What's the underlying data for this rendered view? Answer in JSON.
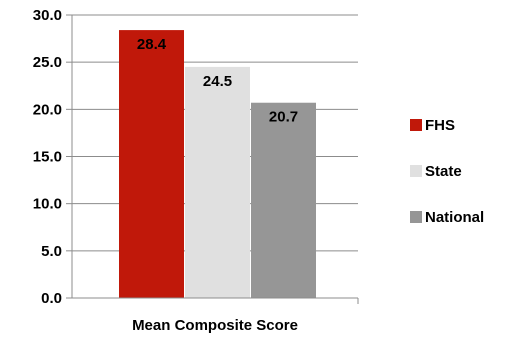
{
  "chart_data": {
    "type": "bar",
    "categories": [
      "Mean Composite Score"
    ],
    "series": [
      {
        "name": "FHS",
        "values": [
          28.4
        ],
        "color": "#c0180a"
      },
      {
        "name": "State",
        "values": [
          24.5
        ],
        "color": "#e0e0e0"
      },
      {
        "name": "National",
        "values": [
          20.7
        ],
        "color": "#969696"
      }
    ],
    "data_labels": [
      "28.4",
      "24.5",
      "20.7"
    ],
    "ylim": [
      0,
      30
    ],
    "yticks": [
      "0.0",
      "5.0",
      "10.0",
      "15.0",
      "20.0",
      "25.0",
      "30.0"
    ],
    "grid": true,
    "legend_position": "right"
  }
}
